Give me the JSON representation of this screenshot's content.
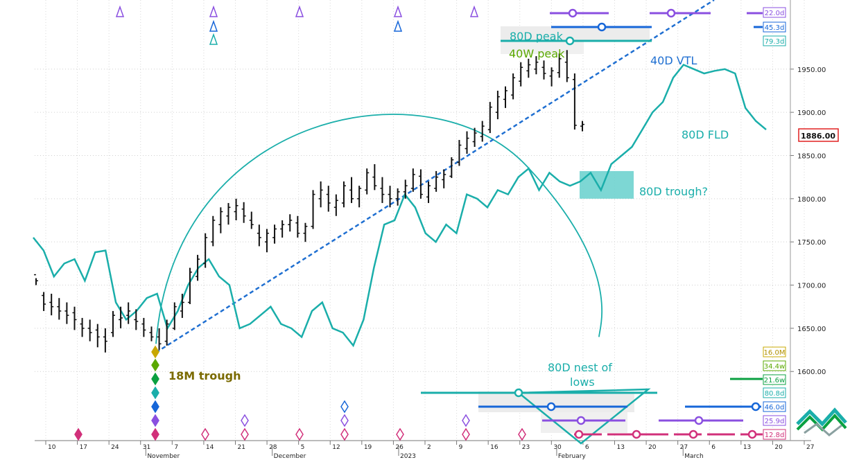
{
  "chart_data": {
    "type": "bar",
    "subtype": "ohlc-price-chart-with-cycle-analysis",
    "ylim": [
      1520,
      2030
    ],
    "y_ticks": [
      1600,
      1650,
      1700,
      1750,
      1800,
      1850,
      1900,
      1950
    ],
    "y_tick_labels": [
      "1600.00",
      "1650.00",
      "1700.00",
      "1750.00",
      "1800.00",
      "1850.00",
      "1900.00",
      "1950.00"
    ],
    "last_price_label": "1886.00",
    "last_price": 1886,
    "x_day_ticks": [
      "10",
      "17",
      "24",
      "31",
      "7",
      "14",
      "21",
      "28",
      "5",
      "12",
      "19",
      "26",
      "2",
      "9",
      "16",
      "23",
      "30",
      "6",
      "13",
      "20",
      "27",
      "6",
      "13",
      "20",
      "27"
    ],
    "x_month_labels": [
      "November",
      "December",
      "2023",
      "February",
      "March"
    ],
    "price_bars": [
      [
        1712,
        1708,
        1700,
        1705
      ],
      [
        1688,
        1692,
        1670,
        1678
      ],
      [
        1680,
        1690,
        1665,
        1675
      ],
      [
        1675,
        1685,
        1660,
        1670
      ],
      [
        1670,
        1680,
        1655,
        1665
      ],
      [
        1668,
        1675,
        1648,
        1660
      ],
      [
        1655,
        1662,
        1640,
        1650
      ],
      [
        1650,
        1660,
        1635,
        1645
      ],
      [
        1648,
        1655,
        1628,
        1640
      ],
      [
        1640,
        1650,
        1622,
        1635
      ],
      [
        1645,
        1670,
        1640,
        1665
      ],
      [
        1660,
        1675,
        1650,
        1662
      ],
      [
        1665,
        1680,
        1655,
        1670
      ],
      [
        1660,
        1672,
        1648,
        1658
      ],
      [
        1655,
        1662,
        1640,
        1648
      ],
      [
        1645,
        1652,
        1635,
        1640
      ],
      [
        1640,
        1650,
        1625,
        1632
      ],
      [
        1635,
        1660,
        1630,
        1655
      ],
      [
        1650,
        1680,
        1648,
        1675
      ],
      [
        1670,
        1690,
        1662,
        1680
      ],
      [
        1680,
        1720,
        1678,
        1715
      ],
      [
        1710,
        1735,
        1705,
        1730
      ],
      [
        1725,
        1760,
        1720,
        1755
      ],
      [
        1750,
        1780,
        1745,
        1775
      ],
      [
        1770,
        1790,
        1760,
        1785
      ],
      [
        1780,
        1795,
        1770,
        1790
      ],
      [
        1785,
        1800,
        1775,
        1792
      ],
      [
        1788,
        1796,
        1772,
        1780
      ],
      [
        1775,
        1785,
        1765,
        1770
      ],
      [
        1760,
        1770,
        1745,
        1755
      ],
      [
        1750,
        1765,
        1738,
        1760
      ],
      [
        1755,
        1770,
        1748,
        1765
      ],
      [
        1765,
        1775,
        1755,
        1770
      ],
      [
        1770,
        1782,
        1762,
        1775
      ],
      [
        1772,
        1780,
        1755,
        1760
      ],
      [
        1760,
        1772,
        1750,
        1768
      ],
      [
        1768,
        1810,
        1765,
        1805
      ],
      [
        1800,
        1820,
        1790,
        1810
      ],
      [
        1805,
        1815,
        1785,
        1795
      ],
      [
        1790,
        1805,
        1780,
        1798
      ],
      [
        1795,
        1820,
        1790,
        1815
      ],
      [
        1810,
        1825,
        1795,
        1800
      ],
      [
        1800,
        1815,
        1790,
        1812
      ],
      [
        1810,
        1835,
        1805,
        1830
      ],
      [
        1825,
        1840,
        1810,
        1815
      ],
      [
        1812,
        1825,
        1795,
        1805
      ],
      [
        1805,
        1815,
        1790,
        1800
      ],
      [
        1800,
        1812,
        1792,
        1808
      ],
      [
        1808,
        1822,
        1800,
        1815
      ],
      [
        1812,
        1835,
        1808,
        1828
      ],
      [
        1826,
        1834,
        1800,
        1805
      ],
      [
        1802,
        1820,
        1795,
        1815
      ],
      [
        1812,
        1832,
        1808,
        1825
      ],
      [
        1822,
        1834,
        1812,
        1828
      ],
      [
        1826,
        1848,
        1824,
        1845
      ],
      [
        1842,
        1868,
        1838,
        1862
      ],
      [
        1858,
        1878,
        1852,
        1870
      ],
      [
        1866,
        1882,
        1860,
        1876
      ],
      [
        1872,
        1890,
        1866,
        1884
      ],
      [
        1880,
        1912,
        1876,
        1906
      ],
      [
        1900,
        1925,
        1892,
        1918
      ],
      [
        1915,
        1930,
        1905,
        1925
      ],
      [
        1920,
        1945,
        1915,
        1940
      ],
      [
        1936,
        1958,
        1930,
        1952
      ],
      [
        1948,
        1962,
        1940,
        1955
      ],
      [
        1950,
        1965,
        1944,
        1958
      ],
      [
        1952,
        1960,
        1938,
        1945
      ],
      [
        1942,
        1952,
        1930,
        1948
      ],
      [
        1946,
        1968,
        1940,
        1962
      ],
      [
        1958,
        1972,
        1935,
        1940
      ],
      [
        1938,
        1945,
        1880,
        1885
      ],
      [
        1884,
        1890,
        1878,
        1886
      ]
    ],
    "series": [
      {
        "name": "80D FLD",
        "color": "#1aaeaa",
        "values": [
          1755,
          1740,
          1710,
          1725,
          1730,
          1705,
          1738,
          1740,
          1680,
          1660,
          1670,
          1685,
          1690,
          1650,
          1670,
          1700,
          1720,
          1730,
          1710,
          1700,
          1650,
          1655,
          1665,
          1675,
          1655,
          1650,
          1640,
          1670,
          1680,
          1650,
          1645,
          1630,
          1660,
          1720,
          1770,
          1775,
          1805,
          1790,
          1760,
          1750,
          1770,
          1760,
          1805,
          1800,
          1790,
          1810,
          1805,
          1825,
          1835,
          1810,
          1830,
          1820,
          1815,
          1820,
          1830,
          1810,
          1840,
          1850,
          1860,
          1880,
          1900,
          1912,
          1940,
          1955,
          1950,
          1945,
          1948,
          1950,
          1945,
          1905,
          1890,
          1880
        ]
      }
    ],
    "annotations": {
      "peak_80d": "80D peak",
      "peak_40w": "40W peak",
      "vtl_40d": "40D VTL",
      "fld_80d": "80D FLD",
      "trough_80d": "80D trough?",
      "trough_18m": "18M trough",
      "nest_line1": "80D nest of",
      "nest_line2": "lows"
    },
    "period_labels_top": [
      "22.0d",
      "45.3d",
      "79.3d"
    ],
    "period_labels_bottom": [
      "16.0M",
      "34.4w",
      "21.6w",
      "80.8d",
      "46.0d",
      "25.9d",
      "12.8d"
    ],
    "colors": {
      "price": "#111111",
      "fld": "#1aaeaa",
      "vtl": "#1f6fd1",
      "trough_label": "#7a6a00",
      "peak_40w": "#5aa800",
      "purple": "#8a4fe0",
      "blue": "#1666d8",
      "magenta": "#d1307a",
      "green": "#0aa040",
      "last_price": "#e02020"
    }
  }
}
